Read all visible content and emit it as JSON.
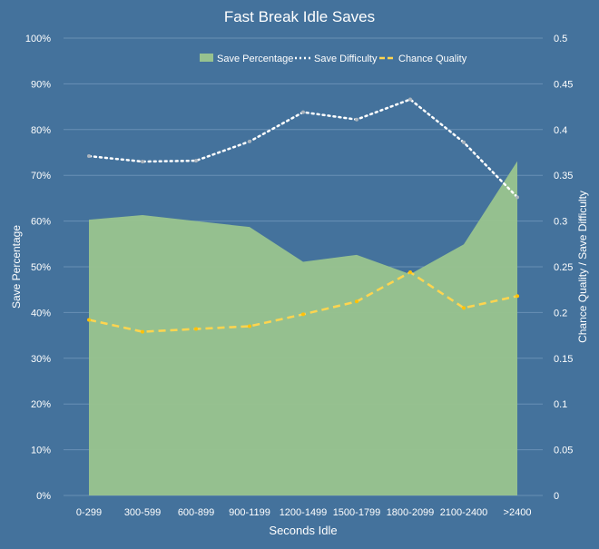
{
  "chart_data": {
    "type": "area+line",
    "title": "Fast Break Idle Saves",
    "xlabel": "Seconds Idle",
    "ylabel": "Save Percentage",
    "y2label": "Chance Quality / Save Difficulty",
    "categories": [
      "0-299",
      "300-599",
      "600-899",
      "900-1199",
      "1200-1499",
      "1500-1799",
      "1800-2099",
      "2100-2400",
      ">2400"
    ],
    "ylim": [
      0,
      100
    ],
    "yticks": [
      "0%",
      "10%",
      "20%",
      "30%",
      "40%",
      "50%",
      "60%",
      "70%",
      "80%",
      "90%",
      "100%"
    ],
    "y2lim": [
      0,
      0.5
    ],
    "y2ticks": [
      "0",
      "0.05",
      "0.1",
      "0.15",
      "0.2",
      "0.25",
      "0.3",
      "0.35",
      "0.4",
      "0.45",
      "0.5"
    ],
    "grid": true,
    "legend_position": "top",
    "series": [
      {
        "name": "Save Percentage",
        "type": "area",
        "axis": "left",
        "color": "#97c28f",
        "values": [
          60.3,
          61.3,
          60.0,
          58.7,
          51.1,
          52.6,
          48.4,
          54.9,
          73.1
        ]
      },
      {
        "name": "Save Difficulty",
        "type": "line",
        "style": "dotted",
        "axis": "right",
        "color": "#ffffff",
        "values": [
          0.371,
          0.365,
          0.366,
          0.387,
          0.419,
          0.411,
          0.433,
          0.386,
          0.326
        ]
      },
      {
        "name": "Chance Quality",
        "type": "line",
        "style": "dashed",
        "axis": "right",
        "color": "#ffd54f",
        "values": [
          0.192,
          0.179,
          0.182,
          0.185,
          0.198,
          0.212,
          0.244,
          0.205,
          0.218
        ]
      }
    ]
  }
}
